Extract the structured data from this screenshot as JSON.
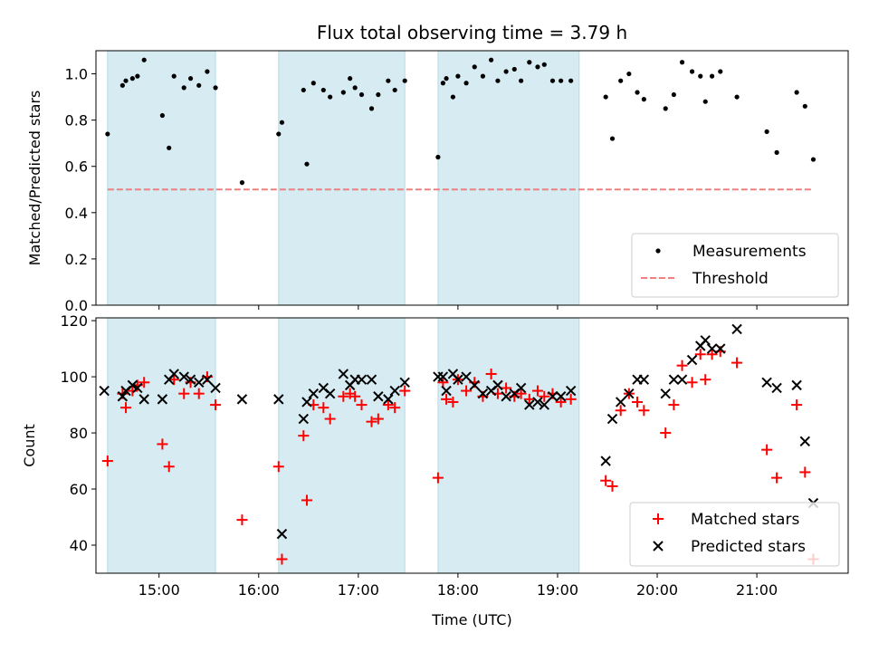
{
  "chart_data": [
    {
      "type": "scatter",
      "title": "Flux total observing time = 3.79 h",
      "xlabel": "",
      "ylabel": "Matched/Predicted stars",
      "ylim": [
        0.0,
        1.1
      ],
      "yticks": [
        "0.0",
        "0.2",
        "0.4",
        "0.6",
        "0.8",
        "1.0"
      ],
      "xlim": [
        "14:22",
        "21:55"
      ],
      "xticks": [
        "15:00",
        "16:00",
        "17:00",
        "18:00",
        "19:00",
        "20:00",
        "21:00"
      ],
      "shaded_intervals": [
        [
          "14:29",
          "15:34"
        ],
        [
          "16:12",
          "17:28"
        ],
        [
          "17:48",
          "19:13"
        ]
      ],
      "threshold": {
        "name": "Threshold",
        "value": 0.5,
        "x_range": [
          "14:29",
          "21:34"
        ],
        "color": "#f08080"
      },
      "series": [
        {
          "name": "Measurements",
          "color": "#000000",
          "marker": "dot",
          "points": [
            [
              "14:29",
              0.74
            ],
            [
              "14:38",
              0.95
            ],
            [
              "14:40",
              0.97
            ],
            [
              "14:44",
              0.98
            ],
            [
              "14:47",
              0.99
            ],
            [
              "14:51",
              1.06
            ],
            [
              "15:02",
              0.82
            ],
            [
              "15:06",
              0.68
            ],
            [
              "15:09",
              0.99
            ],
            [
              "15:15",
              0.94
            ],
            [
              "15:19",
              0.98
            ],
            [
              "15:24",
              0.95
            ],
            [
              "15:29",
              1.01
            ],
            [
              "15:34",
              0.94
            ],
            [
              "15:50",
              0.53
            ],
            [
              "16:12",
              0.74
            ],
            [
              "16:14",
              0.79
            ],
            [
              "16:27",
              0.93
            ],
            [
              "16:29",
              0.61
            ],
            [
              "16:33",
              0.96
            ],
            [
              "16:39",
              0.93
            ],
            [
              "16:43",
              0.9
            ],
            [
              "16:51",
              0.92
            ],
            [
              "16:55",
              0.98
            ],
            [
              "16:58",
              0.94
            ],
            [
              "17:02",
              0.91
            ],
            [
              "17:08",
              0.85
            ],
            [
              "17:12",
              0.91
            ],
            [
              "17:18",
              0.97
            ],
            [
              "17:22",
              0.93
            ],
            [
              "17:28",
              0.97
            ],
            [
              "17:48",
              0.64
            ],
            [
              "17:51",
              0.96
            ],
            [
              "17:53",
              0.98
            ],
            [
              "17:57",
              0.9
            ],
            [
              "18:00",
              0.99
            ],
            [
              "18:05",
              0.96
            ],
            [
              "18:10",
              1.03
            ],
            [
              "18:15",
              0.99
            ],
            [
              "18:20",
              1.06
            ],
            [
              "18:24",
              0.97
            ],
            [
              "18:29",
              1.01
            ],
            [
              "18:34",
              1.02
            ],
            [
              "18:38",
              0.97
            ],
            [
              "18:43",
              1.05
            ],
            [
              "18:48",
              1.03
            ],
            [
              "18:52",
              1.04
            ],
            [
              "18:57",
              0.97
            ],
            [
              "19:02",
              0.97
            ],
            [
              "19:08",
              0.97
            ],
            [
              "19:29",
              0.9
            ],
            [
              "19:33",
              0.72
            ],
            [
              "19:38",
              0.97
            ],
            [
              "19:43",
              1.0
            ],
            [
              "19:48",
              0.92
            ],
            [
              "19:52",
              0.89
            ],
            [
              "20:05",
              0.85
            ],
            [
              "20:10",
              0.91
            ],
            [
              "20:15",
              1.05
            ],
            [
              "20:21",
              1.01
            ],
            [
              "20:26",
              0.99
            ],
            [
              "20:29",
              0.88
            ],
            [
              "20:33",
              0.99
            ],
            [
              "20:38",
              1.01
            ],
            [
              "20:48",
              0.9
            ],
            [
              "21:06",
              0.75
            ],
            [
              "21:12",
              0.66
            ],
            [
              "21:24",
              0.92
            ],
            [
              "21:29",
              0.86
            ],
            [
              "21:34",
              0.63
            ]
          ]
        }
      ]
    },
    {
      "type": "scatter",
      "title": "",
      "xlabel": "Time (UTC)",
      "ylabel": "Count",
      "ylim": [
        30,
        121
      ],
      "yticks": [
        "40",
        "60",
        "80",
        "100",
        "120"
      ],
      "xlim": [
        "14:22",
        "21:55"
      ],
      "xticks": [
        "15:00",
        "16:00",
        "17:00",
        "18:00",
        "19:00",
        "20:00",
        "21:00"
      ],
      "shaded_intervals": [
        [
          "14:29",
          "15:34"
        ],
        [
          "16:12",
          "17:28"
        ],
        [
          "17:48",
          "19:13"
        ]
      ],
      "series": [
        {
          "name": "Matched stars",
          "color": "#ff0000",
          "marker": "plus",
          "points": [
            [
              "14:29",
              70
            ],
            [
              "14:38",
              94
            ],
            [
              "14:40",
              89
            ],
            [
              "14:44",
              95
            ],
            [
              "14:47",
              97
            ],
            [
              "14:51",
              98
            ],
            [
              "15:02",
              76
            ],
            [
              "15:06",
              68
            ],
            [
              "15:09",
              99
            ],
            [
              "15:15",
              94
            ],
            [
              "15:19",
              98
            ],
            [
              "15:24",
              94
            ],
            [
              "15:29",
              100
            ],
            [
              "15:34",
              90
            ],
            [
              "15:50",
              49
            ],
            [
              "16:12",
              68
            ],
            [
              "16:14",
              35
            ],
            [
              "16:27",
              79
            ],
            [
              "16:29",
              56
            ],
            [
              "16:33",
              90
            ],
            [
              "16:39",
              89
            ],
            [
              "16:43",
              85
            ],
            [
              "16:51",
              93
            ],
            [
              "16:55",
              94
            ],
            [
              "16:58",
              93
            ],
            [
              "17:02",
              90
            ],
            [
              "17:08",
              84
            ],
            [
              "17:12",
              85
            ],
            [
              "17:18",
              90
            ],
            [
              "17:22",
              89
            ],
            [
              "17:28",
              95
            ],
            [
              "17:48",
              64
            ],
            [
              "17:51",
              98
            ],
            [
              "17:53",
              92
            ],
            [
              "17:57",
              91
            ],
            [
              "18:00",
              99
            ],
            [
              "18:05",
              95
            ],
            [
              "18:10",
              98
            ],
            [
              "18:15",
              93
            ],
            [
              "18:20",
              101
            ],
            [
              "18:24",
              94
            ],
            [
              "18:29",
              96
            ],
            [
              "18:34",
              93
            ],
            [
              "18:38",
              94
            ],
            [
              "18:43",
              92
            ],
            [
              "18:48",
              95
            ],
            [
              "18:52",
              93
            ],
            [
              "18:57",
              94
            ],
            [
              "19:02",
              91
            ],
            [
              "19:08",
              92
            ],
            [
              "19:29",
              63
            ],
            [
              "19:33",
              61
            ],
            [
              "19:38",
              88
            ],
            [
              "19:43",
              94
            ],
            [
              "19:48",
              91
            ],
            [
              "19:52",
              88
            ],
            [
              "20:05",
              80
            ],
            [
              "20:10",
              90
            ],
            [
              "20:15",
              104
            ],
            [
              "20:21",
              98
            ],
            [
              "20:26",
              108
            ],
            [
              "20:29",
              99
            ],
            [
              "20:33",
              108
            ],
            [
              "20:38",
              109
            ],
            [
              "20:48",
              105
            ],
            [
              "21:06",
              74
            ],
            [
              "21:12",
              64
            ],
            [
              "21:24",
              90
            ],
            [
              "21:29",
              66
            ],
            [
              "21:34",
              35
            ]
          ]
        },
        {
          "name": "Predicted stars",
          "color": "#000000",
          "marker": "x",
          "points": [
            [
              "14:27",
              95
            ],
            [
              "14:38",
              93
            ],
            [
              "14:40",
              95
            ],
            [
              "14:44",
              97
            ],
            [
              "14:47",
              96
            ],
            [
              "14:51",
              92
            ],
            [
              "15:02",
              92
            ],
            [
              "15:06",
              99
            ],
            [
              "15:09",
              101
            ],
            [
              "15:15",
              100
            ],
            [
              "15:19",
              99
            ],
            [
              "15:24",
              98
            ],
            [
              "15:29",
              99
            ],
            [
              "15:34",
              96
            ],
            [
              "15:50",
              92
            ],
            [
              "16:12",
              92
            ],
            [
              "16:14",
              44
            ],
            [
              "16:27",
              85
            ],
            [
              "16:29",
              91
            ],
            [
              "16:33",
              94
            ],
            [
              "16:39",
              96
            ],
            [
              "16:43",
              94
            ],
            [
              "16:51",
              101
            ],
            [
              "16:55",
              97
            ],
            [
              "16:58",
              99
            ],
            [
              "17:02",
              99
            ],
            [
              "17:08",
              99
            ],
            [
              "17:12",
              93
            ],
            [
              "17:18",
              92
            ],
            [
              "17:22",
              95
            ],
            [
              "17:28",
              98
            ],
            [
              "17:48",
              100
            ],
            [
              "17:51",
              100
            ],
            [
              "17:53",
              95
            ],
            [
              "17:57",
              101
            ],
            [
              "18:00",
              99
            ],
            [
              "18:05",
              100
            ],
            [
              "18:10",
              97
            ],
            [
              "18:15",
              94
            ],
            [
              "18:20",
              95
            ],
            [
              "18:24",
              97
            ],
            [
              "18:29",
              93
            ],
            [
              "18:34",
              94
            ],
            [
              "18:38",
              96
            ],
            [
              "18:43",
              90
            ],
            [
              "18:48",
              91
            ],
            [
              "18:52",
              90
            ],
            [
              "18:57",
              93
            ],
            [
              "19:02",
              93
            ],
            [
              "19:08",
              95
            ],
            [
              "19:29",
              70
            ],
            [
              "19:33",
              85
            ],
            [
              "19:38",
              91
            ],
            [
              "19:43",
              94
            ],
            [
              "19:48",
              99
            ],
            [
              "19:52",
              99
            ],
            [
              "20:05",
              94
            ],
            [
              "20:10",
              99
            ],
            [
              "20:15",
              99
            ],
            [
              "20:21",
              106
            ],
            [
              "20:26",
              111
            ],
            [
              "20:29",
              113
            ],
            [
              "20:33",
              110
            ],
            [
              "20:38",
              110
            ],
            [
              "20:48",
              117
            ],
            [
              "21:06",
              98
            ],
            [
              "21:12",
              96
            ],
            [
              "21:24",
              97
            ],
            [
              "21:29",
              77
            ],
            [
              "21:34",
              55
            ]
          ]
        }
      ]
    }
  ]
}
